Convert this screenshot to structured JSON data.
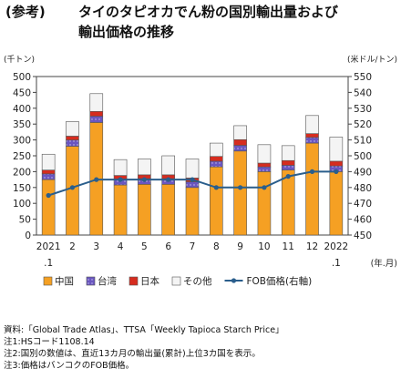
{
  "header": {
    "tag": "(参考)",
    "title_line1": "タイのタピオカでん粉の国別輸出量および",
    "title_line2": "輸出価格の推移"
  },
  "chart_data": {
    "type": "bar",
    "stacked": true,
    "categories": [
      "2021\n.1",
      "2",
      "3",
      "4",
      "5",
      "6",
      "7",
      "8",
      "9",
      "10",
      "11",
      "12",
      "2022\n.1"
    ],
    "series": [
      {
        "name": "中国",
        "color": "#f5a023",
        "values": [
          175,
          280,
          355,
          158,
          160,
          160,
          150,
          215,
          265,
          200,
          205,
          290,
          200
        ]
      },
      {
        "name": "台湾",
        "color": "#6a56c0",
        "values": [
          18,
          20,
          20,
          18,
          18,
          18,
          18,
          18,
          18,
          15,
          15,
          18,
          18
        ]
      },
      {
        "name": "日本",
        "color": "#d62c1f",
        "values": [
          12,
          12,
          15,
          12,
          12,
          12,
          12,
          15,
          18,
          12,
          15,
          12,
          15
        ]
      },
      {
        "name": "その他",
        "color": "#f4f4f4",
        "values": [
          50,
          46,
          56,
          50,
          50,
          60,
          60,
          42,
          44,
          58,
          47,
          57,
          76
        ]
      }
    ],
    "line": {
      "name": "FOB価格(右軸)",
      "color": "#2a5e8c",
      "values": [
        475,
        480,
        485,
        485,
        485,
        485,
        485,
        480,
        480,
        480,
        487,
        490,
        490
      ]
    },
    "y_left": {
      "label": "(千トン)",
      "min": 0,
      "max": 500,
      "step": 50
    },
    "y_right": {
      "label": "(米ドル/トン)",
      "min": 450,
      "max": 550,
      "step": 10
    },
    "x_unit": "(年.月)",
    "grid": false,
    "legend_position": "bottom"
  },
  "notes": [
    "資料:「Global Trade Atlas」、TTSA「Weekly Tapioca Starch Price」",
    "注1:HSコード1108.14",
    "注2:国別の数値は、直近13カ月の輸出量(累計)上位3カ国を表示。",
    "注3:価格はバンコクのFOB価格。"
  ]
}
